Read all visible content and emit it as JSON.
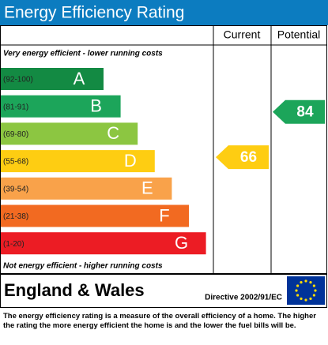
{
  "chart_data": {
    "type": "epc",
    "title": "Energy Efficiency Rating",
    "columns": [
      "Current",
      "Potential"
    ],
    "top_note": "Very energy efficient - lower running costs",
    "bottom_note": "Not energy efficient - higher running costs",
    "bands": [
      {
        "range": "(92-100)",
        "letter": "A",
        "color": "#138a43"
      },
      {
        "range": "(81-91)",
        "letter": "B",
        "color": "#1ca55a"
      },
      {
        "range": "(69-80)",
        "letter": "C",
        "color": "#8cc641"
      },
      {
        "range": "(55-68)",
        "letter": "D",
        "color": "#fecd12"
      },
      {
        "range": "(39-54)",
        "letter": "E",
        "color": "#f9a24a"
      },
      {
        "range": "(21-38)",
        "letter": "F",
        "color": "#f26a21"
      },
      {
        "range": "(1-20)",
        "letter": "G",
        "color": "#ec1c24"
      }
    ],
    "current": 66,
    "potential": 84,
    "region": "England & Wales",
    "directive": "Directive 2002/91/EC",
    "footer": "The energy efficiency rating is a measure of the overall efficiency of a home. The higher the rating the more energy efficient the home is and the lower the fuel bills will be."
  }
}
